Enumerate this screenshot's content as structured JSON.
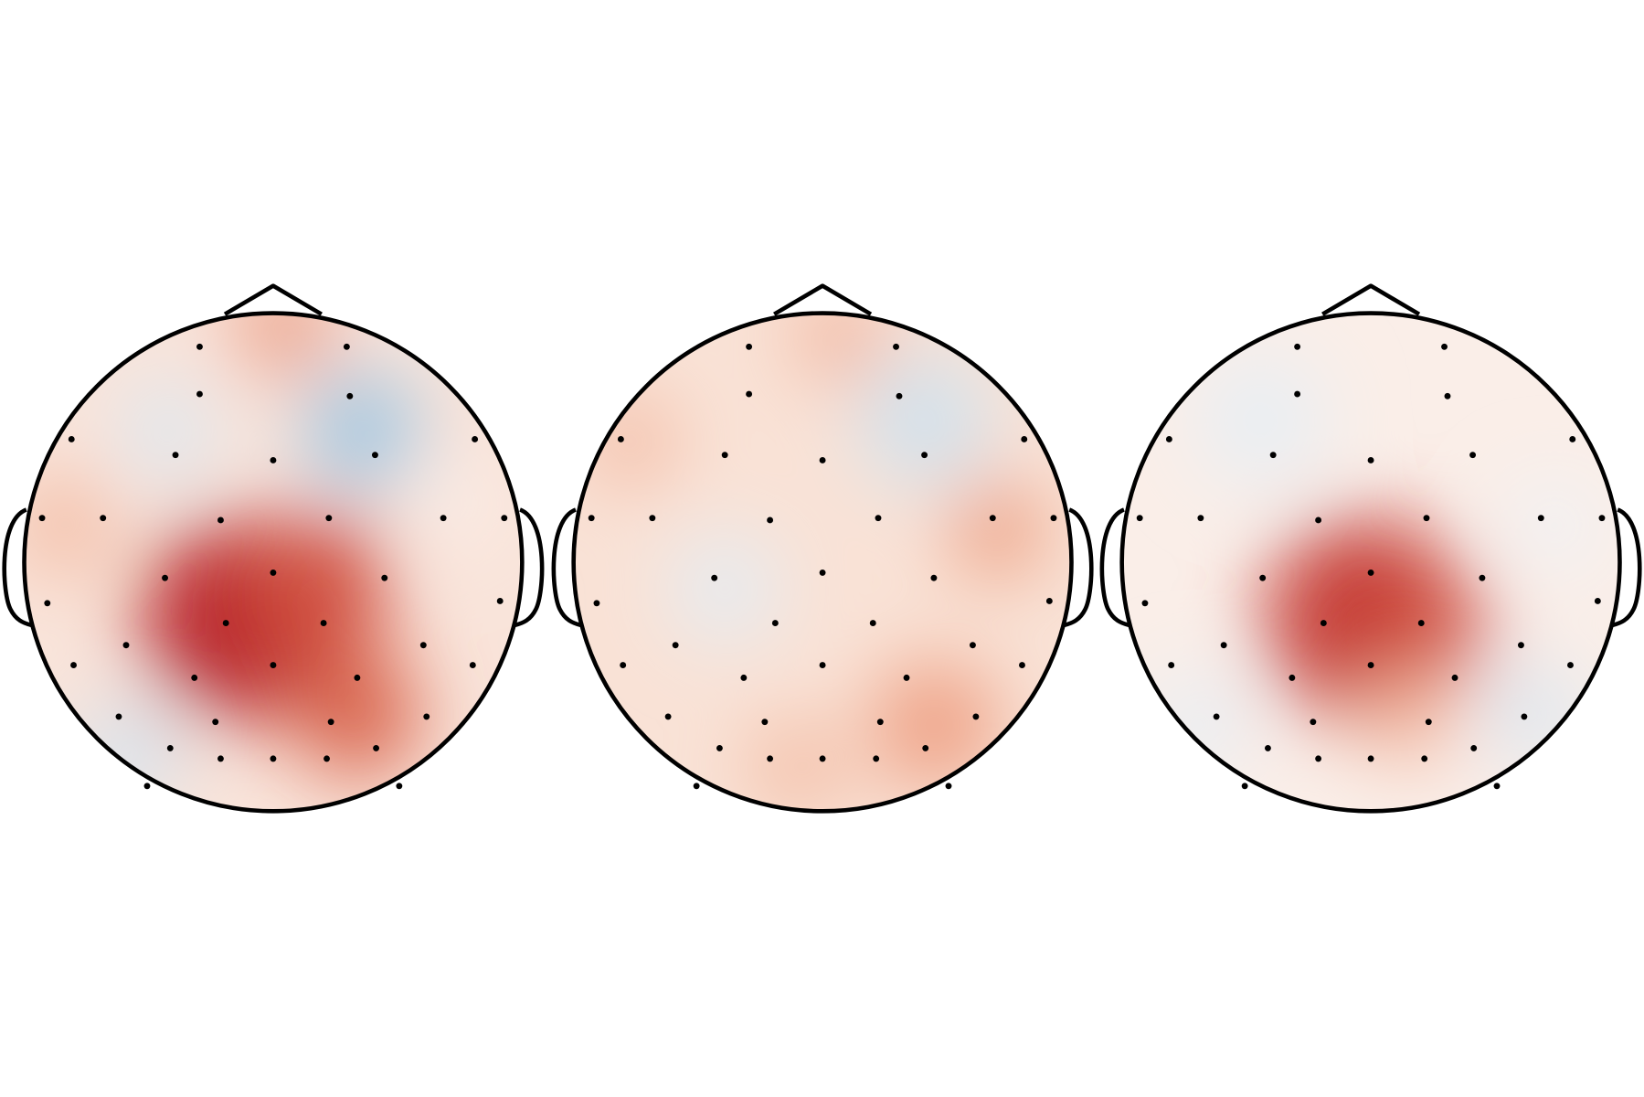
{
  "chart_data": [
    {
      "type": "topomap"
    },
    {
      "type": "topomap"
    },
    {
      "type": "topomap"
    }
  ]
}
